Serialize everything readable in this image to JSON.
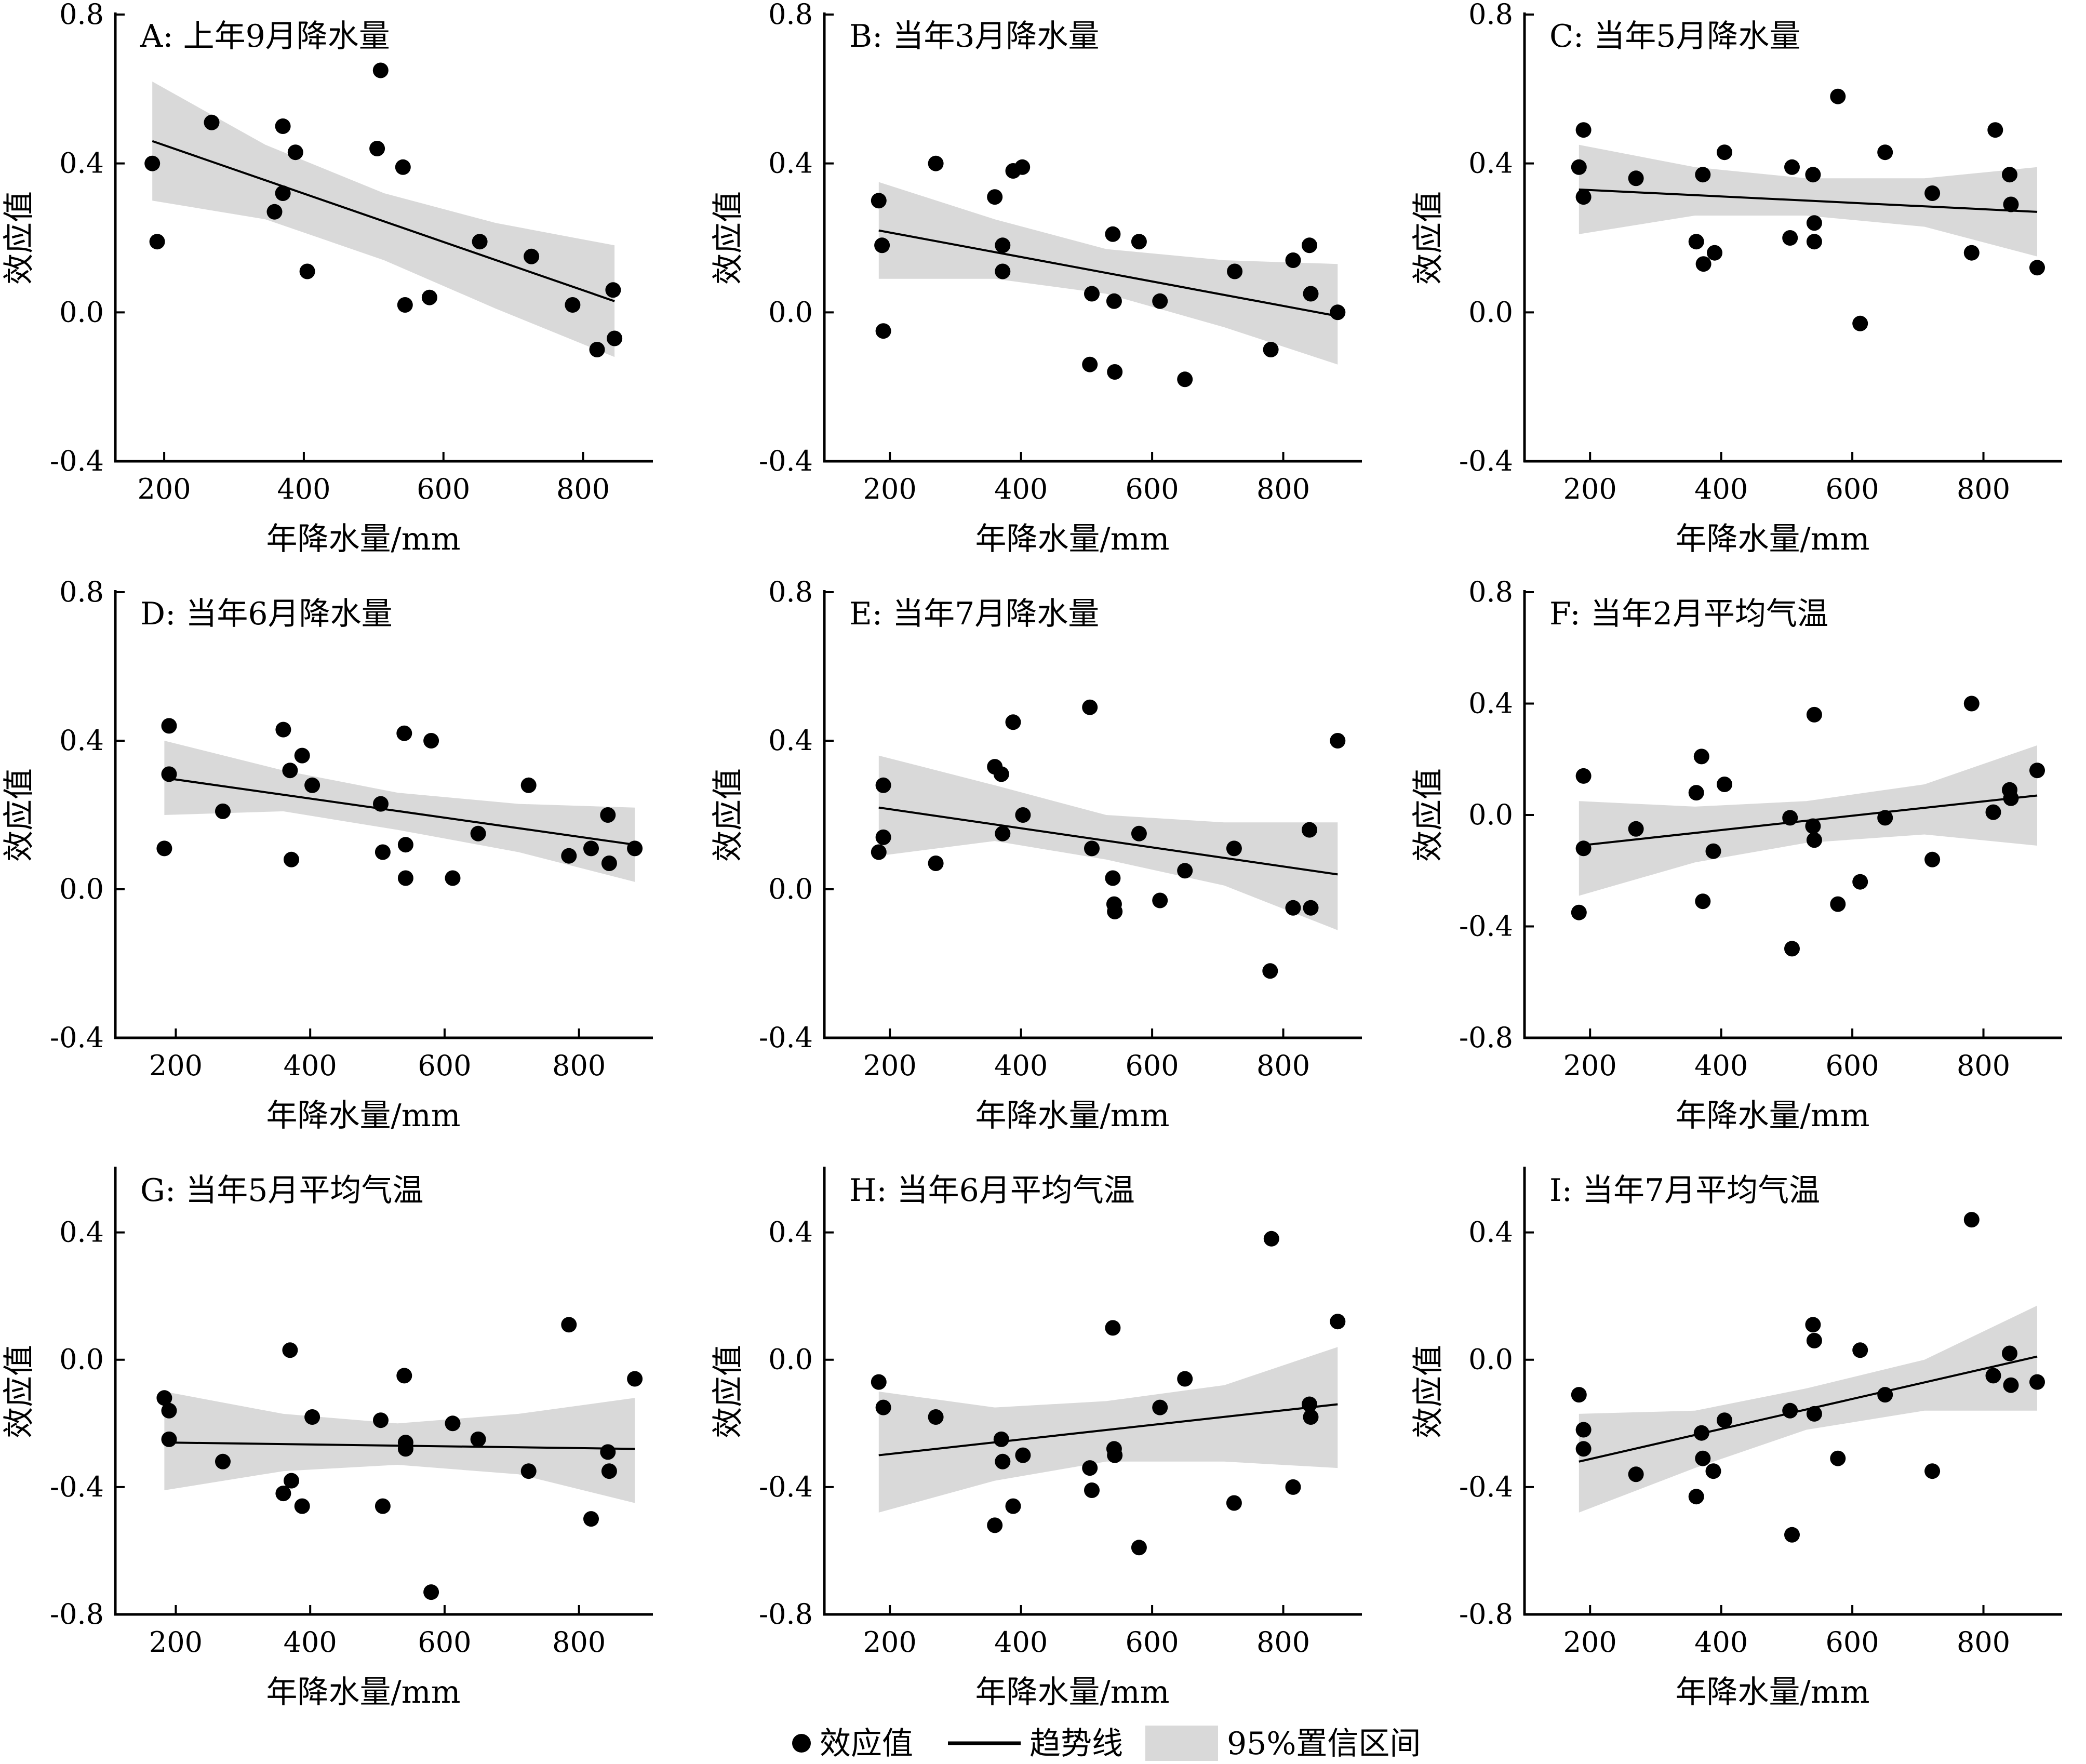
{
  "chart_data": [
    {
      "type": "scatter",
      "id": "A",
      "title": "A: 上年9月降水量",
      "xlabel": "年降水量/mm",
      "ylabel": "效应值",
      "xticks": [
        200,
        400,
        600,
        800
      ],
      "yticks": [
        0.8,
        0.4,
        0.0,
        -0.4
      ],
      "xlim": [
        130,
        900
      ],
      "ylim": [
        -0.4,
        0.8
      ],
      "points": [
        [
          183,
          0.4
        ],
        [
          190,
          0.19
        ],
        [
          268,
          0.51
        ],
        [
          358,
          0.27
        ],
        [
          370,
          0.5
        ],
        [
          370,
          0.32
        ],
        [
          388,
          0.43
        ],
        [
          405,
          0.11
        ],
        [
          505,
          0.44
        ],
        [
          510,
          0.65
        ],
        [
          542,
          0.39
        ],
        [
          545,
          0.02
        ],
        [
          580,
          0.04
        ],
        [
          652,
          0.19
        ],
        [
          726,
          0.15
        ],
        [
          785,
          0.02
        ],
        [
          820,
          -0.1
        ],
        [
          843,
          0.06
        ],
        [
          845,
          -0.07
        ]
      ],
      "trend": {
        "x": [
          183,
          845
        ],
        "y": [
          0.46,
          0.03
        ]
      },
      "ci": {
        "x": [
          183,
          345,
          515,
          675,
          845
        ],
        "upper": [
          0.62,
          0.45,
          0.32,
          0.24,
          0.18
        ],
        "lower": [
          0.3,
          0.25,
          0.14,
          0.01,
          -0.12
        ]
      }
    },
    {
      "type": "scatter",
      "id": "B",
      "title": "B: 当年3月降水量",
      "xlabel": "年降水量/mm",
      "ylabel": "效应值",
      "xticks": [
        200,
        400,
        600,
        800
      ],
      "yticks": [
        0.8,
        0.4,
        0.0,
        -0.4
      ],
      "xlim": [
        100,
        920
      ],
      "ylim": [
        -0.4,
        0.8
      ],
      "points": [
        [
          183,
          0.3
        ],
        [
          188,
          0.18
        ],
        [
          190,
          -0.05
        ],
        [
          270,
          0.4
        ],
        [
          360,
          0.31
        ],
        [
          372,
          0.18
        ],
        [
          372,
          0.11
        ],
        [
          388,
          0.38
        ],
        [
          402,
          0.39
        ],
        [
          505,
          -0.14
        ],
        [
          508,
          0.05
        ],
        [
          540,
          0.21
        ],
        [
          542,
          0.03
        ],
        [
          543,
          -0.16
        ],
        [
          580,
          0.19
        ],
        [
          612,
          0.03
        ],
        [
          650,
          -0.18
        ],
        [
          726,
          0.11
        ],
        [
          781,
          -0.1
        ],
        [
          815,
          0.14
        ],
        [
          840,
          0.18
        ],
        [
          842,
          0.05
        ],
        [
          883,
          0.0
        ]
      ],
      "trend": {
        "x": [
          183,
          883
        ],
        "y": [
          0.22,
          -0.01
        ]
      },
      "ci": {
        "x": [
          183,
          360,
          530,
          710,
          883
        ],
        "upper": [
          0.35,
          0.25,
          0.17,
          0.14,
          0.13
        ],
        "lower": [
          0.09,
          0.09,
          0.05,
          -0.04,
          -0.14
        ]
      }
    },
    {
      "type": "scatter",
      "id": "C",
      "title": "C: 当年5月降水量",
      "xlabel": "年降水量/mm",
      "ylabel": "效应值",
      "xticks": [
        200,
        400,
        600,
        800
      ],
      "yticks": [
        0.8,
        0.4,
        0.0,
        -0.4
      ],
      "xlim": [
        100,
        920
      ],
      "ylim": [
        -0.4,
        0.8
      ],
      "points": [
        [
          183,
          0.39
        ],
        [
          190,
          0.49
        ],
        [
          190,
          0.31
        ],
        [
          270,
          0.36
        ],
        [
          362,
          0.19
        ],
        [
          372,
          0.37
        ],
        [
          373,
          0.13
        ],
        [
          390,
          0.16
        ],
        [
          405,
          0.43
        ],
        [
          505,
          0.2
        ],
        [
          508,
          0.39
        ],
        [
          540,
          0.37
        ],
        [
          542,
          0.24
        ],
        [
          542,
          0.19
        ],
        [
          578,
          0.58
        ],
        [
          612,
          -0.03
        ],
        [
          650,
          0.43
        ],
        [
          722,
          0.32
        ],
        [
          782,
          0.16
        ],
        [
          818,
          0.49
        ],
        [
          840,
          0.37
        ],
        [
          842,
          0.29
        ],
        [
          882,
          0.12
        ]
      ],
      "trend": {
        "x": [
          183,
          882
        ],
        "y": [
          0.33,
          0.27
        ]
      },
      "ci": {
        "x": [
          183,
          360,
          530,
          710,
          882
        ],
        "upper": [
          0.45,
          0.39,
          0.36,
          0.36,
          0.39
        ],
        "lower": [
          0.21,
          0.26,
          0.26,
          0.23,
          0.15
        ]
      }
    },
    {
      "type": "scatter",
      "id": "D",
      "title": "D: 当年6月降水量",
      "xlabel": "年降水量/mm",
      "ylabel": "效应值",
      "xticks": [
        200,
        400,
        600,
        800
      ],
      "yticks": [
        0.8,
        0.4,
        0.0,
        -0.4
      ],
      "xlim": [
        110,
        910
      ],
      "ylim": [
        -0.4,
        0.8
      ],
      "points": [
        [
          183,
          0.11
        ],
        [
          190,
          0.44
        ],
        [
          190,
          0.31
        ],
        [
          270,
          0.21
        ],
        [
          360,
          0.43
        ],
        [
          370,
          0.32
        ],
        [
          372,
          0.08
        ],
        [
          388,
          0.36
        ],
        [
          403,
          0.28
        ],
        [
          505,
          0.23
        ],
        [
          508,
          0.1
        ],
        [
          540,
          0.42
        ],
        [
          542,
          0.12
        ],
        [
          542,
          0.03
        ],
        [
          580,
          0.4
        ],
        [
          612,
          0.03
        ],
        [
          650,
          0.15
        ],
        [
          725,
          0.28
        ],
        [
          785,
          0.09
        ],
        [
          818,
          0.11
        ],
        [
          843,
          0.2
        ],
        [
          845,
          0.07
        ],
        [
          883,
          0.11
        ]
      ],
      "trend": {
        "x": [
          183,
          883
        ],
        "y": [
          0.3,
          0.12
        ]
      },
      "ci": {
        "x": [
          183,
          360,
          530,
          710,
          883
        ],
        "upper": [
          0.4,
          0.32,
          0.26,
          0.23,
          0.22
        ],
        "lower": [
          0.2,
          0.21,
          0.16,
          0.1,
          0.02
        ]
      }
    },
    {
      "type": "scatter",
      "id": "E",
      "title": "E: 当年7月降水量",
      "xlabel": "年降水量/mm",
      "ylabel": "效应值",
      "xticks": [
        200,
        400,
        600,
        800
      ],
      "yticks": [
        0.8,
        0.4,
        0.0,
        -0.4
      ],
      "xlim": [
        100,
        920
      ],
      "ylim": [
        -0.4,
        0.8
      ],
      "points": [
        [
          183,
          0.1
        ],
        [
          190,
          0.28
        ],
        [
          190,
          0.14
        ],
        [
          270,
          0.07
        ],
        [
          360,
          0.33
        ],
        [
          370,
          0.31
        ],
        [
          372,
          0.15
        ],
        [
          388,
          0.45
        ],
        [
          403,
          0.2
        ],
        [
          505,
          0.49
        ],
        [
          508,
          0.11
        ],
        [
          540,
          0.03
        ],
        [
          542,
          -0.04
        ],
        [
          543,
          -0.06
        ],
        [
          580,
          0.15
        ],
        [
          612,
          -0.03
        ],
        [
          650,
          0.05
        ],
        [
          725,
          0.11
        ],
        [
          780,
          -0.22
        ],
        [
          815,
          -0.05
        ],
        [
          840,
          0.16
        ],
        [
          842,
          -0.05
        ],
        [
          883,
          0.4
        ]
      ],
      "trend": {
        "x": [
          183,
          883
        ],
        "y": [
          0.22,
          0.04
        ]
      },
      "ci": {
        "x": [
          183,
          360,
          530,
          710,
          883
        ],
        "upper": [
          0.36,
          0.28,
          0.2,
          0.18,
          0.18
        ],
        "lower": [
          0.09,
          0.13,
          0.08,
          0.01,
          -0.11
        ]
      }
    },
    {
      "type": "scatter",
      "id": "F",
      "title": "F: 当年2月平均气温",
      "xlabel": "年降水量/mm",
      "ylabel": "效应值",
      "xticks": [
        200,
        400,
        600,
        800
      ],
      "yticks": [
        0.8,
        0.4,
        0.0,
        -0.4,
        -0.8
      ],
      "xlim": [
        100,
        920
      ],
      "ylim": [
        -0.8,
        0.8
      ],
      "points": [
        [
          183,
          -0.35
        ],
        [
          190,
          0.14
        ],
        [
          190,
          -0.12
        ],
        [
          270,
          -0.05
        ],
        [
          362,
          0.08
        ],
        [
          370,
          0.21
        ],
        [
          372,
          -0.31
        ],
        [
          388,
          -0.13
        ],
        [
          405,
          0.11
        ],
        [
          505,
          -0.01
        ],
        [
          508,
          -0.48
        ],
        [
          540,
          -0.04
        ],
        [
          542,
          -0.09
        ],
        [
          542,
          0.36
        ],
        [
          578,
          -0.32
        ],
        [
          612,
          -0.24
        ],
        [
          650,
          -0.01
        ],
        [
          722,
          -0.16
        ],
        [
          782,
          0.4
        ],
        [
          815,
          0.01
        ],
        [
          840,
          0.09
        ],
        [
          842,
          0.06
        ],
        [
          882,
          0.16
        ]
      ],
      "trend": {
        "x": [
          183,
          882
        ],
        "y": [
          -0.11,
          0.07
        ]
      },
      "ci": {
        "x": [
          183,
          360,
          530,
          710,
          882
        ],
        "upper": [
          0.05,
          0.03,
          0.05,
          0.11,
          0.25
        ],
        "lower": [
          -0.29,
          -0.17,
          -0.1,
          -0.07,
          -0.11
        ]
      }
    },
    {
      "type": "scatter",
      "id": "G",
      "title": "G: 当年5月平均气温",
      "xlabel": "年降水量/mm",
      "ylabel": "效应值",
      "xticks": [
        200,
        400,
        600,
        800
      ],
      "yticks": [
        0.4,
        0.0,
        -0.4,
        -0.8
      ],
      "xlim": [
        110,
        910
      ],
      "ylim": [
        -0.8,
        0.6
      ],
      "points": [
        [
          183,
          -0.12
        ],
        [
          190,
          -0.16
        ],
        [
          190,
          -0.25
        ],
        [
          270,
          -0.32
        ],
        [
          360,
          -0.42
        ],
        [
          370,
          0.03
        ],
        [
          372,
          -0.38
        ],
        [
          388,
          -0.46
        ],
        [
          403,
          -0.18
        ],
        [
          505,
          -0.19
        ],
        [
          508,
          -0.46
        ],
        [
          540,
          -0.05
        ],
        [
          542,
          -0.28
        ],
        [
          542,
          -0.26
        ],
        [
          580,
          -0.73
        ],
        [
          612,
          -0.2
        ],
        [
          650,
          -0.25
        ],
        [
          725,
          -0.35
        ],
        [
          785,
          0.11
        ],
        [
          818,
          -0.5
        ],
        [
          843,
          -0.29
        ],
        [
          845,
          -0.35
        ],
        [
          883,
          -0.06
        ]
      ],
      "trend": {
        "x": [
          183,
          883
        ],
        "y": [
          -0.26,
          -0.28
        ]
      },
      "ci": {
        "x": [
          183,
          360,
          530,
          710,
          883
        ],
        "upper": [
          -0.1,
          -0.17,
          -0.2,
          -0.17,
          -0.12
        ],
        "lower": [
          -0.41,
          -0.35,
          -0.33,
          -0.36,
          -0.45
        ]
      }
    },
    {
      "type": "scatter",
      "id": "H",
      "title": "H: 当年6月平均气温",
      "xlabel": "年降水量/mm",
      "ylabel": "效应值",
      "xticks": [
        200,
        400,
        600,
        800
      ],
      "yticks": [
        0.4,
        0.0,
        -0.4,
        -0.8
      ],
      "xlim": [
        100,
        920
      ],
      "ylim": [
        -0.8,
        0.6
      ],
      "points": [
        [
          183,
          -0.07
        ],
        [
          190,
          -0.15
        ],
        [
          270,
          -0.18
        ],
        [
          360,
          -0.52
        ],
        [
          370,
          -0.25
        ],
        [
          372,
          -0.32
        ],
        [
          388,
          -0.46
        ],
        [
          403,
          -0.3
        ],
        [
          505,
          -0.34
        ],
        [
          508,
          -0.41
        ],
        [
          540,
          0.1
        ],
        [
          542,
          -0.28
        ],
        [
          543,
          -0.3
        ],
        [
          580,
          -0.59
        ],
        [
          612,
          -0.15
        ],
        [
          650,
          -0.06
        ],
        [
          725,
          -0.45
        ],
        [
          782,
          0.38
        ],
        [
          815,
          -0.4
        ],
        [
          840,
          -0.14
        ],
        [
          842,
          -0.18
        ],
        [
          883,
          0.12
        ]
      ],
      "trend": {
        "x": [
          183,
          883
        ],
        "y": [
          -0.3,
          -0.14
        ]
      },
      "ci": {
        "x": [
          183,
          360,
          530,
          710,
          883
        ],
        "upper": [
          -0.1,
          -0.15,
          -0.13,
          -0.08,
          0.04
        ],
        "lower": [
          -0.48,
          -0.38,
          -0.32,
          -0.32,
          -0.34
        ]
      }
    },
    {
      "type": "scatter",
      "id": "I",
      "title": "I: 当年7月平均气温",
      "xlabel": "年降水量/mm",
      "ylabel": "效应值",
      "xticks": [
        200,
        400,
        600,
        800
      ],
      "yticks": [
        0.4,
        0.0,
        -0.4,
        -0.8
      ],
      "xlim": [
        100,
        920
      ],
      "ylim": [
        -0.8,
        0.6
      ],
      "points": [
        [
          183,
          -0.11
        ],
        [
          190,
          -0.22
        ],
        [
          190,
          -0.28
        ],
        [
          270,
          -0.36
        ],
        [
          362,
          -0.43
        ],
        [
          370,
          -0.23
        ],
        [
          372,
          -0.31
        ],
        [
          388,
          -0.35
        ],
        [
          405,
          -0.19
        ],
        [
          505,
          -0.16
        ],
        [
          508,
          -0.55
        ],
        [
          540,
          0.11
        ],
        [
          542,
          0.06
        ],
        [
          542,
          -0.17
        ],
        [
          578,
          -0.31
        ],
        [
          612,
          0.03
        ],
        [
          650,
          -0.11
        ],
        [
          722,
          -0.35
        ],
        [
          782,
          0.44
        ],
        [
          815,
          -0.05
        ],
        [
          840,
          0.02
        ],
        [
          842,
          -0.08
        ],
        [
          882,
          -0.07
        ]
      ],
      "trend": {
        "x": [
          183,
          882
        ],
        "y": [
          -0.32,
          0.01
        ]
      },
      "ci": {
        "x": [
          183,
          360,
          530,
          710,
          882
        ],
        "upper": [
          -0.17,
          -0.16,
          -0.09,
          0.0,
          0.17
        ],
        "lower": [
          -0.48,
          -0.34,
          -0.22,
          -0.16,
          -0.16
        ]
      }
    }
  ],
  "legend": {
    "items": [
      {
        "label": "效应值",
        "kind": "point"
      },
      {
        "label": "趋势线",
        "kind": "line"
      },
      {
        "label": "95%置信区间",
        "kind": "band"
      }
    ],
    "placement": "bottom-center"
  },
  "colors": {
    "point": "#000000",
    "trend": "#000000",
    "band": "#d9d9d9",
    "axis": "#000000"
  }
}
